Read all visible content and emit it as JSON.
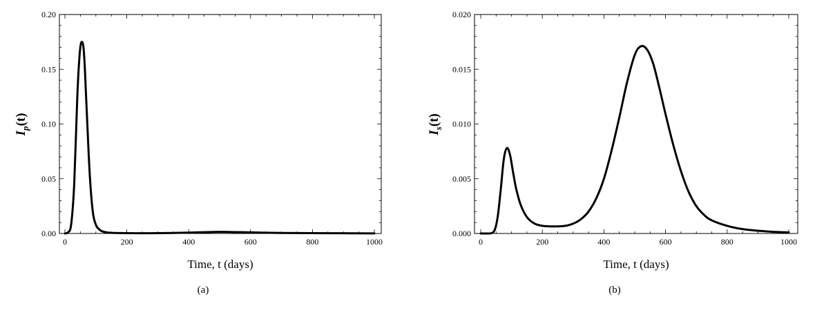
{
  "chart_data": [
    {
      "type": "line",
      "caption": "(a)",
      "xlabel": "Time, t (days)",
      "ylabel": {
        "main": "I",
        "sub": "p",
        "suffix": "(t)"
      },
      "xlim": [
        0,
        1000
      ],
      "ylim": [
        0,
        0.2
      ],
      "xticks": [
        0,
        200,
        400,
        600,
        800,
        1000
      ],
      "xtick_labels": [
        "0",
        "200",
        "400",
        "600",
        "800",
        "1000"
      ],
      "yticks": [
        0,
        0.05,
        0.1,
        0.15,
        0.2
      ],
      "ytick_labels": [
        "0.00",
        "0.05",
        "0.10",
        "0.15",
        "0.20"
      ],
      "grid": false,
      "series": [
        {
          "x": [
            0,
            10,
            20,
            30,
            40,
            48,
            55,
            62,
            70,
            80,
            90,
            100,
            110,
            120,
            140,
            160,
            200,
            250,
            300,
            350,
            400,
            450,
            500,
            550,
            600,
            650,
            700,
            800,
            900,
            1000
          ],
          "y": [
            0,
            0.001,
            0.008,
            0.045,
            0.125,
            0.165,
            0.175,
            0.163,
            0.115,
            0.055,
            0.02,
            0.008,
            0.004,
            0.002,
            0.0008,
            0.0005,
            0.0003,
            0.0002,
            0.0003,
            0.0005,
            0.0008,
            0.0012,
            0.0015,
            0.0013,
            0.001,
            0.0007,
            0.0005,
            0.0003,
            0.0002,
            0.0001
          ]
        }
      ]
    },
    {
      "type": "line",
      "caption": "(b)",
      "xlabel": "Time, t (days)",
      "ylabel": {
        "main": "I",
        "sub": "s",
        "suffix": "(t)"
      },
      "xlim": [
        0,
        1000
      ],
      "ylim": [
        0,
        0.02
      ],
      "xticks": [
        0,
        200,
        400,
        600,
        800,
        1000
      ],
      "xtick_labels": [
        "0",
        "200",
        "400",
        "600",
        "800",
        "1000"
      ],
      "yticks": [
        0,
        0.005,
        0.01,
        0.015,
        0.02
      ],
      "ytick_labels": [
        "0.000",
        "0.005",
        "0.010",
        "0.015",
        "0.020"
      ],
      "grid": false,
      "series": [
        {
          "x": [
            0,
            30,
            45,
            55,
            65,
            75,
            85,
            95,
            105,
            115,
            130,
            150,
            175,
            200,
            225,
            250,
            275,
            300,
            325,
            350,
            375,
            400,
            425,
            450,
            475,
            500,
            520,
            540,
            560,
            580,
            600,
            625,
            650,
            675,
            700,
            725,
            750,
            800,
            850,
            900,
            950,
            1000
          ],
          "y": [
            0,
            0,
            0.0003,
            0.0015,
            0.004,
            0.0068,
            0.0078,
            0.0072,
            0.0056,
            0.0041,
            0.0026,
            0.0015,
            0.0009,
            0.0007,
            0.00065,
            0.00065,
            0.0007,
            0.0009,
            0.0013,
            0.002,
            0.0032,
            0.005,
            0.0076,
            0.0106,
            0.0138,
            0.0163,
            0.0171,
            0.0168,
            0.0155,
            0.0133,
            0.0109,
            0.0081,
            0.0057,
            0.0038,
            0.0025,
            0.0017,
            0.0012,
            0.0007,
            0.0004,
            0.00025,
            0.00015,
            0.0001
          ]
        }
      ]
    }
  ]
}
